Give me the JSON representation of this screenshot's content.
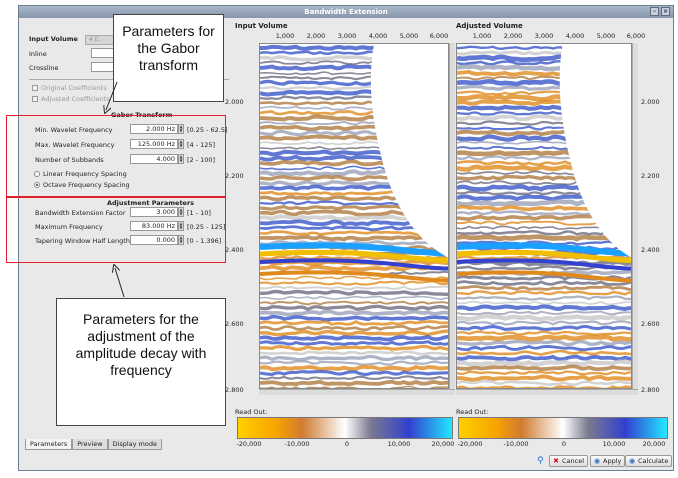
{
  "window": {
    "title": "Bandwidth Extension"
  },
  "left": {
    "input_volume_label": "Input Volume",
    "inline_label": "Inline",
    "crossline_label": "Crossline",
    "original_coeff": "Original Coefficients",
    "adjusted_coeff": "Adjusted Coefficients",
    "gabor_section": "Gabor Transform",
    "gabor": [
      {
        "label": "Min. Wavelet Frequency",
        "value": "2.000 Hz",
        "range": "[0.25 - 62.5]"
      },
      {
        "label": "Max. Wavelet Frequency",
        "value": "125.000 Hz",
        "range": "[4 - 125]"
      },
      {
        "label": "Number of Subbands",
        "value": "4.000",
        "range": "[2 - 100]"
      }
    ],
    "linear_spacing": "Linear Frequency Spacing",
    "octave_spacing": "Octave Frequency Spacing",
    "adjust_section": "Adjustment Parameters",
    "adjust": [
      {
        "label": "Bandwidth Extension Factor",
        "value": "3.000",
        "range": "[1 - 10]"
      },
      {
        "label": "Maximum Frequency",
        "value": "83.000 Hz",
        "range": "[0.25 - 125]"
      },
      {
        "label": "Tapering Window Half Length",
        "value": "0.000",
        "range": "[0 - 1.396]"
      }
    ]
  },
  "tabs": [
    "Parameters",
    "Preview",
    "Display mode"
  ],
  "input_panel": {
    "title": "Input Volume",
    "read_out": "Read Out:"
  },
  "adjusted_panel": {
    "title": "Adjusted Volume",
    "read_out": "Read Out:"
  },
  "x_ticks": [
    "1,000",
    "2,000",
    "3,000",
    "4,000",
    "5,000",
    "6,000"
  ],
  "y_ticks": [
    "2.000",
    "2.200",
    "2.400",
    "2.600",
    "2.800"
  ],
  "colorbar_ticks": [
    "-20,000",
    "-10,000",
    "0",
    "10,000",
    "20,000"
  ],
  "buttons": {
    "cancel": "Cancel",
    "apply": "Apply",
    "calculate": "Calculate"
  },
  "annotations": {
    "gabor_note": "Parameters for the Gabor transform",
    "adjust_note": "Parameters for the adjustment of the amplitude decay with frequency"
  },
  "colors": {
    "accent_red": "#e0202a",
    "title_bar": "#8e9db2"
  }
}
